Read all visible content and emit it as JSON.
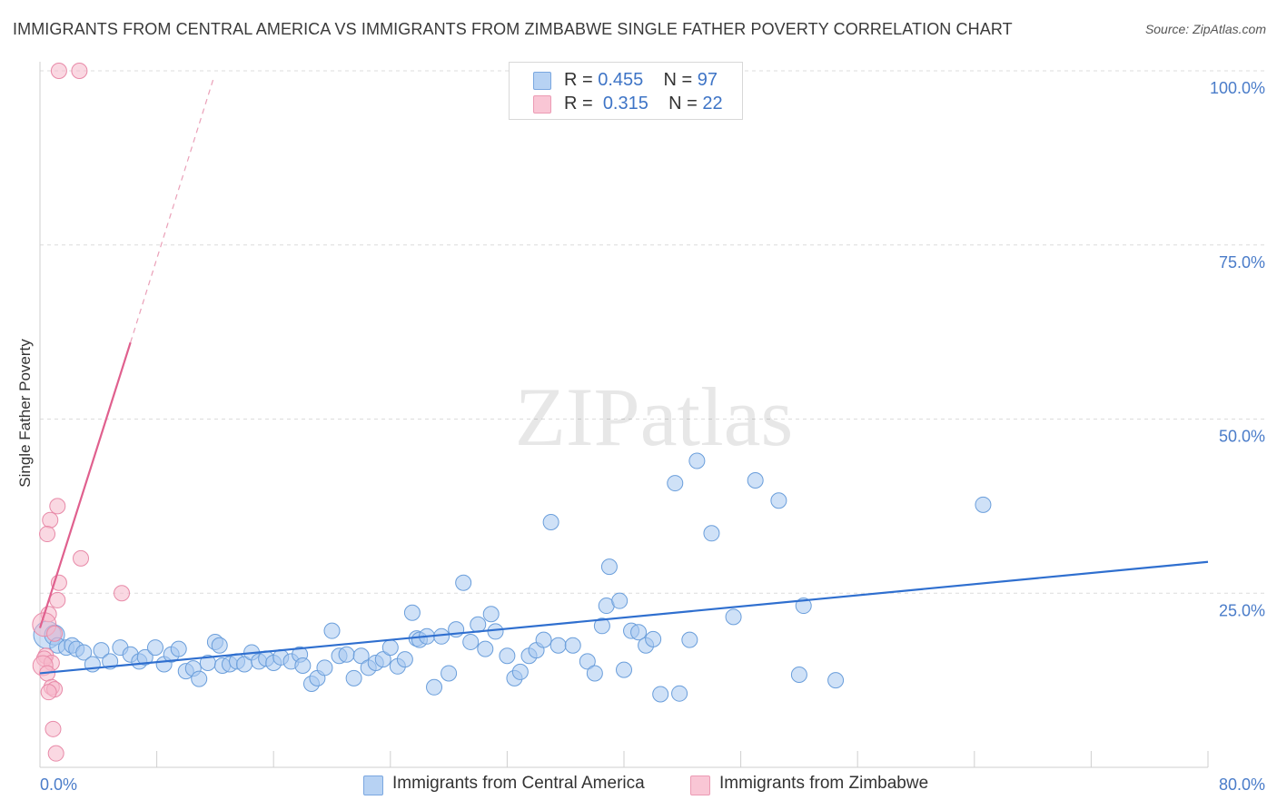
{
  "chart_data": {
    "type": "scatter",
    "title": "IMMIGRANTS FROM CENTRAL AMERICA VS IMMIGRANTS FROM ZIMBABWE SINGLE FATHER POVERTY CORRELATION CHART",
    "source": "Source: ZipAtlas.com",
    "ylabel": "Single Father Poverty",
    "xlim": [
      0,
      80
    ],
    "ylim": [
      0,
      100
    ],
    "x_ticks": [
      "0.0%",
      "80.0%"
    ],
    "y_ticks": [
      {
        "value": 25,
        "label": "25.0%"
      },
      {
        "value": 50,
        "label": "50.0%"
      },
      {
        "value": 75,
        "label": "75.0%"
      },
      {
        "value": 100,
        "label": "100.0%"
      }
    ],
    "watermark": "ZIPatlas",
    "legend": {
      "r_label": "R =",
      "n_label": "N =",
      "entries": [
        {
          "r": "0.455",
          "n": "97",
          "color": "#a8c8f0"
        },
        {
          "r": "0.315",
          "n": "22",
          "color": "#f6b8cb"
        }
      ]
    },
    "series": [
      {
        "name": "Immigrants from Central America",
        "color": "#a8c8f0",
        "stroke": "#6a9edb",
        "trend_color": "#2f6fcf",
        "trend": {
          "x0": 0,
          "y0": 13.5,
          "x1": 80,
          "y1": 29.5
        },
        "points": [
          [
            0.5,
            19
          ],
          [
            1.0,
            19
          ],
          [
            1.2,
            17.5
          ],
          [
            1.8,
            17.2
          ],
          [
            2.2,
            17.5
          ],
          [
            2.5,
            17
          ],
          [
            3.0,
            16.5
          ],
          [
            3.6,
            14.8
          ],
          [
            4.2,
            16.8
          ],
          [
            4.8,
            15.2
          ],
          [
            5.5,
            17.2
          ],
          [
            6.2,
            16.2
          ],
          [
            6.8,
            15.2
          ],
          [
            7.2,
            15.8
          ],
          [
            7.9,
            17.2
          ],
          [
            8.5,
            14.8
          ],
          [
            9.0,
            16.2
          ],
          [
            9.5,
            17.0
          ],
          [
            10.0,
            13.8
          ],
          [
            10.5,
            14.2
          ],
          [
            10.9,
            12.7
          ],
          [
            11.5,
            15.0
          ],
          [
            12.0,
            18.0
          ],
          [
            12.3,
            17.5
          ],
          [
            12.5,
            14.6
          ],
          [
            13.0,
            14.8
          ],
          [
            13.5,
            15.2
          ],
          [
            14.0,
            14.8
          ],
          [
            14.5,
            16.5
          ],
          [
            15.0,
            15.2
          ],
          [
            15.5,
            15.6
          ],
          [
            16.0,
            15.0
          ],
          [
            16.5,
            15.8
          ],
          [
            17.2,
            15.2
          ],
          [
            17.8,
            16.2
          ],
          [
            18.0,
            14.6
          ],
          [
            18.6,
            12.0
          ],
          [
            19.0,
            12.8
          ],
          [
            19.5,
            14.3
          ],
          [
            20.0,
            19.6
          ],
          [
            20.5,
            16.0
          ],
          [
            21.0,
            16.2
          ],
          [
            21.5,
            12.8
          ],
          [
            22.0,
            16.0
          ],
          [
            22.5,
            14.3
          ],
          [
            23.0,
            15.0
          ],
          [
            23.5,
            15.5
          ],
          [
            24.0,
            17.2
          ],
          [
            24.5,
            14.5
          ],
          [
            25.0,
            15.5
          ],
          [
            25.5,
            22.2
          ],
          [
            25.8,
            18.5
          ],
          [
            26.0,
            18.3
          ],
          [
            26.5,
            18.8
          ],
          [
            27.0,
            11.5
          ],
          [
            27.5,
            18.8
          ],
          [
            28.0,
            13.5
          ],
          [
            28.5,
            19.8
          ],
          [
            29.0,
            26.5
          ],
          [
            29.5,
            18.0
          ],
          [
            30.0,
            20.5
          ],
          [
            30.5,
            17.0
          ],
          [
            30.9,
            22.0
          ],
          [
            31.2,
            19.5
          ],
          [
            32.0,
            16.0
          ],
          [
            32.5,
            12.8
          ],
          [
            32.9,
            13.7
          ],
          [
            33.5,
            16.0
          ],
          [
            34.0,
            16.8
          ],
          [
            34.5,
            18.3
          ],
          [
            35.0,
            35.2
          ],
          [
            35.5,
            17.5
          ],
          [
            36.5,
            17.5
          ],
          [
            37.5,
            15.2
          ],
          [
            38.0,
            13.5
          ],
          [
            38.5,
            20.3
          ],
          [
            38.8,
            23.2
          ],
          [
            39.0,
            28.8
          ],
          [
            39.7,
            23.9
          ],
          [
            40.0,
            14.0
          ],
          [
            40.5,
            19.6
          ],
          [
            41.0,
            19.4
          ],
          [
            41.5,
            17.5
          ],
          [
            42.0,
            18.4
          ],
          [
            42.5,
            10.5
          ],
          [
            43.5,
            40.8
          ],
          [
            43.8,
            10.6
          ],
          [
            44.5,
            18.3
          ],
          [
            45.0,
            44.0
          ],
          [
            46.0,
            33.6
          ],
          [
            47.5,
            21.6
          ],
          [
            49.0,
            41.2
          ],
          [
            50.6,
            38.3
          ],
          [
            52.3,
            23.2
          ],
          [
            64.6,
            37.7
          ],
          [
            52.0,
            13.3
          ],
          [
            54.5,
            12.5
          ]
        ]
      },
      {
        "name": "Immigrants from Zimbabwe",
        "color": "#f6b8cb",
        "stroke": "#e88aa8",
        "trend_color": "#e0608e",
        "trend": {
          "x0": 0,
          "y0": 20.0,
          "x1": 6.2,
          "y1": 61.0
        },
        "trend_dashed": {
          "x0": 6.2,
          "y0": 61.0,
          "x1": 11.9,
          "y1": 99.0
        },
        "points": [
          [
            1.3,
            100
          ],
          [
            2.7,
            100
          ],
          [
            1.2,
            37.5
          ],
          [
            0.7,
            35.5
          ],
          [
            0.5,
            33.5
          ],
          [
            2.8,
            30.0
          ],
          [
            1.3,
            26.5
          ],
          [
            5.6,
            25.0
          ],
          [
            1.2,
            24.0
          ],
          [
            0.6,
            22.0
          ],
          [
            0.3,
            20.5
          ],
          [
            1.0,
            19.2
          ],
          [
            0.4,
            16.0
          ],
          [
            0.3,
            15.6
          ],
          [
            0.8,
            15.0
          ],
          [
            0.2,
            14.6
          ],
          [
            0.5,
            13.5
          ],
          [
            0.8,
            11.5
          ],
          [
            1.0,
            11.2
          ],
          [
            0.6,
            10.8
          ],
          [
            0.9,
            5.5
          ],
          [
            1.1,
            2.0
          ]
        ]
      }
    ]
  }
}
